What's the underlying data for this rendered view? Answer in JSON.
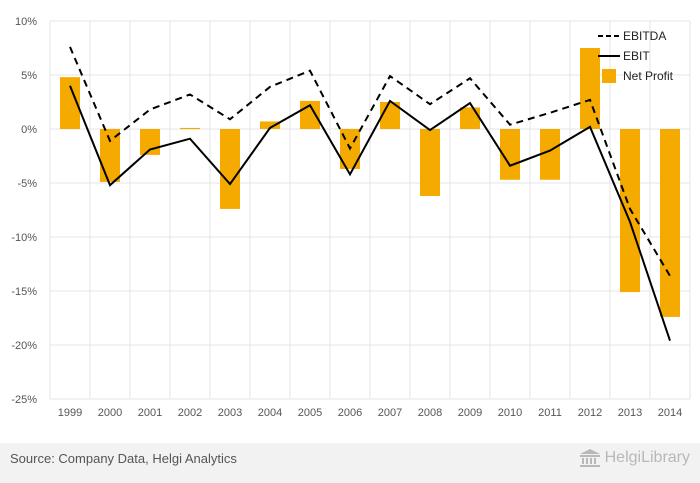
{
  "footer": {
    "source": "Source: Company Data, Helgi Analytics",
    "brand": "HelgiLibrary"
  },
  "colors": {
    "net_profit": "#f5aa00",
    "ebit": "#000000",
    "ebitda": "#000000",
    "grid": "#e5e5e5",
    "axis_text": "#555555",
    "brand": "#b8b8b8"
  },
  "icons": {
    "brand": "building-icon"
  },
  "chart_data": {
    "type": "bar",
    "title": "",
    "xlabel": "",
    "ylabel": "",
    "ylim": [
      -25,
      10
    ],
    "yticks": [
      10,
      5,
      0,
      -5,
      -10,
      -15,
      -20,
      -25
    ],
    "ytick_labels": [
      "10%",
      "5%",
      "0%",
      "-5%",
      "-10%",
      "-15%",
      "-20%",
      "-25%"
    ],
    "categories": [
      "1999",
      "2000",
      "2001",
      "2002",
      "2003",
      "2004",
      "2005",
      "2006",
      "2007",
      "2008",
      "2009",
      "2010",
      "2011",
      "2012",
      "2013",
      "2014"
    ],
    "grid": true,
    "legend_position": "top-right",
    "series": [
      {
        "name": "EBITDA",
        "kind": "line",
        "style": "dashed",
        "values": [
          7.6,
          -1.1,
          1.8,
          3.2,
          0.9,
          3.9,
          5.4,
          -1.8,
          4.9,
          2.3,
          4.7,
          0.4,
          1.5,
          2.7,
          -7.4,
          -13.6
        ]
      },
      {
        "name": "EBIT",
        "kind": "line",
        "style": "solid",
        "values": [
          4.0,
          -5.2,
          -1.9,
          -0.9,
          -5.1,
          0.1,
          2.2,
          -4.2,
          2.6,
          -0.1,
          2.4,
          -3.4,
          -2.0,
          0.2,
          -8.6,
          -19.6
        ]
      },
      {
        "name": "Net Profit",
        "kind": "bar",
        "values": [
          4.8,
          -4.9,
          -2.4,
          0.1,
          -7.4,
          0.7,
          2.6,
          -3.7,
          2.5,
          -6.2,
          2.0,
          -4.7,
          -4.7,
          7.5,
          -15.1,
          -17.4
        ]
      }
    ]
  }
}
